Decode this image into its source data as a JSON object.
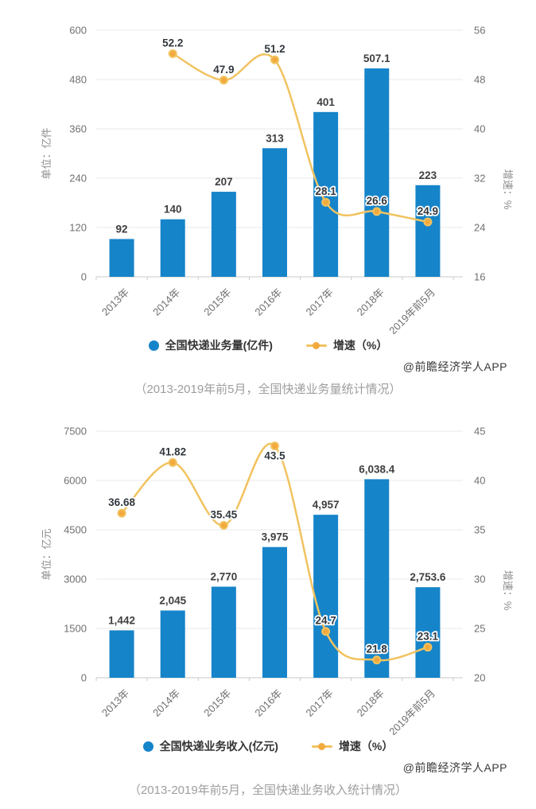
{
  "watermark": "@前瞻经济学人APP",
  "chart_data": [
    {
      "type": "bar+line combo",
      "caption": "（2013-2019年前5月，全国快递业务量统计情况）",
      "categories": [
        "2013年",
        "2014年",
        "2015年",
        "2016年",
        "2017年",
        "2018年",
        "2019年前5月"
      ],
      "bar_series": {
        "name": "全国快递业务量(亿件)",
        "values": [
          92,
          140,
          207,
          313,
          401,
          507.1,
          223
        ],
        "labels": [
          "92",
          "140",
          "207",
          "313",
          "401",
          "507.1",
          "223"
        ],
        "color": "#1684c9"
      },
      "line_series": {
        "name": "增速（%）",
        "values": [
          null,
          52.2,
          47.9,
          51.2,
          28.1,
          26.6,
          24.9
        ],
        "labels": [
          "",
          "52.2",
          "47.9",
          "51.2",
          "28.1",
          "26.6",
          "24.9"
        ],
        "label_offsets": [
          null,
          null,
          null,
          null,
          null,
          null,
          null
        ],
        "color": "#f1c360",
        "point_color": "#f2a93d"
      },
      "left_axis": {
        "name": "单位：亿件",
        "min": 0,
        "max": 600,
        "tick_labels": [
          "0",
          "120",
          "240",
          "360",
          "480",
          "600"
        ]
      },
      "right_axis": {
        "name": "增速：%",
        "min": 16,
        "max": 56,
        "tick_labels": [
          "16",
          "24",
          "32",
          "40",
          "48",
          "56"
        ]
      },
      "grid": true,
      "legend_position": "bottom"
    },
    {
      "type": "bar+line combo",
      "caption": "（2013-2019年前5月，全国快递业务收入统计情况）",
      "categories": [
        "2013年",
        "2014年",
        "2015年",
        "2016年",
        "2017年",
        "2018年",
        "2019年前5月"
      ],
      "bar_series": {
        "name": "全国快递业务收入(亿元)",
        "values": [
          1442,
          2045,
          2770,
          3975,
          4957,
          6038.4,
          2753.6
        ],
        "labels": [
          "1,442",
          "2,045",
          "2,770",
          "3,975",
          "4,957",
          "6,038.4",
          "2,753.6"
        ],
        "color": "#1684c9"
      },
      "line_series": {
        "name": "增速（%）",
        "values": [
          36.68,
          41.82,
          35.45,
          43.5,
          24.7,
          21.8,
          23.1
        ],
        "labels": [
          "36.68",
          "41.82",
          "35.45",
          "43.5",
          "24.7",
          "21.8",
          "23.1"
        ],
        "label_offsets": [
          null,
          null,
          null,
          [
            0,
            26
          ],
          null,
          null,
          null
        ],
        "color": "#f1c360",
        "point_color": "#f2a93d"
      },
      "left_axis": {
        "name": "单位：亿元",
        "min": 0,
        "max": 7500,
        "tick_labels": [
          "0",
          "1500",
          "3000",
          "4500",
          "6000",
          "7500"
        ]
      },
      "right_axis": {
        "name": "增速：%",
        "min": 20,
        "max": 45,
        "tick_labels": [
          "20",
          "25",
          "30",
          "35",
          "40",
          "45"
        ]
      },
      "grid": true,
      "legend_position": "bottom"
    }
  ],
  "style": {
    "bar_color": "#1684c9",
    "line_color": "#f1c360",
    "point_color": "#f2a93d",
    "grid_color": "#e9e9e9",
    "axis_line_color": "#c9c9c9",
    "tick_text_color": "#707070",
    "axis_name_color": "#8c8c8c",
    "bar_label_color": "#3f3f3f",
    "line_label_color": "#32383e"
  }
}
